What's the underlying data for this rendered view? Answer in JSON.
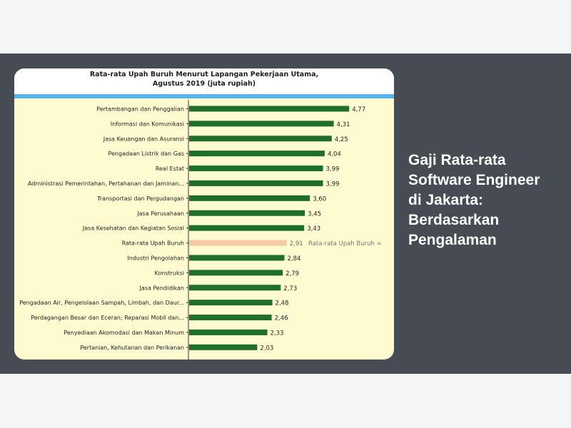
{
  "colors": {
    "band": "#474b53",
    "card": "#fefbd0",
    "bar": "#1f6e2a",
    "highlight_bar": "#f6c9a2",
    "axis": "#333333"
  },
  "side_title": "Gaji Rata-rata Software Engineer di Jakarta: Berdasarkan Pengalaman",
  "chart_data": {
    "type": "bar",
    "orientation": "horizontal",
    "title_line1": "Rata-rata Upah Buruh Menurut Lapangan Pekerjaan Utama,",
    "title_line2": "Agustus 2019 (juta rupiah)",
    "categories": [
      "Pertambangan dan Penggalian",
      "Informasi dan Komunikasi",
      "Jasa Keuangan dan Asuransi",
      "Pengadaan Listrik dan Gas",
      "Real Estat",
      "Administrasi Pemerintahan, Pertahanan dan Jaminan...",
      "Transportasi dan Pergudangan",
      "Jasa Perusahaan",
      "Jasa Kesehatan dan Kegiatan Sosial",
      "Rata-rata Upah Buruh",
      "Industri Pengolahan",
      "Konstruksi",
      "Jasa Pendidikan",
      "Pengadaan Air, Pengelolaan Sampah, Limbah, dan Daur...",
      "Perdagangan Besar dan Eceran; Reparasi Mobil dan...",
      "Penyediaan Akomodasi dan Makan Minum",
      "Pertanian, Kehutanan dan Perikanan"
    ],
    "values": [
      4.77,
      4.31,
      4.25,
      4.04,
      3.99,
      3.99,
      3.6,
      3.45,
      3.43,
      2.91,
      2.84,
      2.79,
      2.73,
      2.48,
      2.46,
      2.33,
      2.03
    ],
    "value_labels": [
      "4,77",
      "4,31",
      "4,25",
      "4,04",
      "3,99",
      "3,99",
      "3,60",
      "3,45",
      "3,43",
      "2,91",
      "2,84",
      "2,79",
      "2,73",
      "2,48",
      "2,46",
      "2,33",
      "2,03"
    ],
    "highlight_index": 9,
    "reference_label": "Rata-rata Upah Buruh =",
    "xlim": [
      0,
      5.2
    ],
    "grid": false,
    "legend": "none"
  }
}
